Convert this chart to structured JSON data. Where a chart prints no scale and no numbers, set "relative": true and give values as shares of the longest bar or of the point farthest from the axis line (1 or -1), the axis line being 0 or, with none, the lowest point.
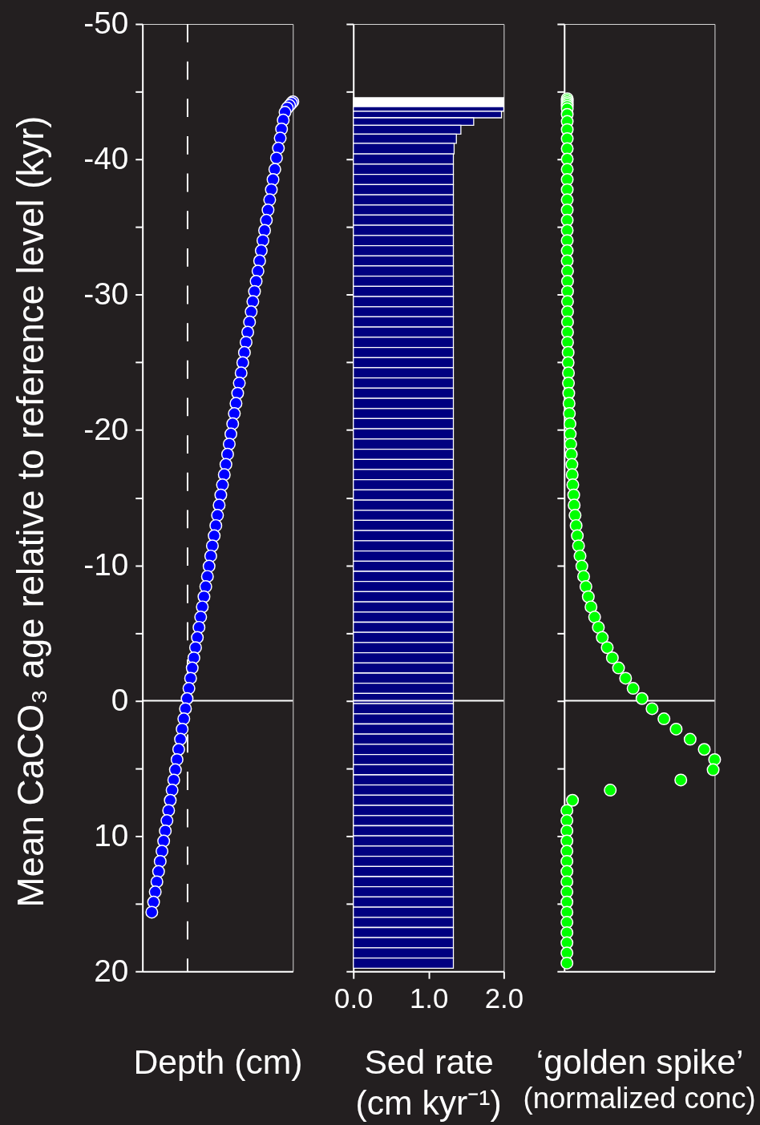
{
  "chart_data": [
    {
      "type": "scatter",
      "orientation": "horizontal",
      "relative": true,
      "marker": "circle",
      "color": "#0000ff",
      "xlabel": "Depth (cm)",
      "ylabel": "Mean CaCO₃ age relative to reference level (kyr)",
      "ylim": [
        20,
        -50
      ],
      "yticks": [
        -50,
        {
          "value": -45,
          "label": null
        },
        -40,
        {
          "value": -35,
          "label": null
        },
        -30,
        {
          "value": -25,
          "label": null
        },
        -20,
        {
          "value": -15,
          "label": null
        },
        -10,
        {
          "value": -5,
          "label": null
        },
        0,
        {
          "value": 5,
          "label": null
        },
        10,
        {
          "value": 15,
          "label": null
        },
        20
      ],
      "tick_labels": "y",
      "ref_lines": [
        {
          "axis": "y",
          "value": 0,
          "color": "#ffffff"
        },
        {
          "axis": "x",
          "value": 0.3,
          "color": "#ffffff",
          "line_style": "dashed"
        }
      ],
      "x": [
        -44.26,
        -44.15,
        -43.98,
        -43.8,
        -43.48,
        -42.9,
        -42.24,
        -41.57,
        -40.83,
        -40.1,
        -39.26,
        -38.51,
        -37.76,
        -37.01,
        -36.26,
        -35.5,
        -34.75,
        -34.0,
        -33.25,
        -32.5,
        -31.74,
        -30.99,
        -30.24,
        -29.49,
        -28.74,
        -27.98,
        -27.23,
        -26.48,
        -25.73,
        -24.98,
        -24.22,
        -23.47,
        -22.72,
        -21.97,
        -21.22,
        -20.46,
        -19.71,
        -18.96,
        -18.21,
        -17.46,
        -16.7,
        -15.95,
        -15.2,
        -14.45,
        -13.7,
        -12.94,
        -12.19,
        -11.44,
        -10.69,
        -9.94,
        -9.18,
        -8.43,
        -7.68,
        -6.93,
        -6.18,
        -5.42,
        -4.67,
        -3.92,
        -3.17,
        -2.42,
        -1.66,
        -0.91,
        -0.16,
        0.59,
        1.34,
        2.1,
        2.85,
        3.6,
        4.35,
        5.1,
        5.86,
        6.61,
        7.36,
        8.11,
        8.86,
        9.62,
        10.37,
        11.12,
        11.87,
        12.62,
        13.38,
        14.13,
        14.88,
        15.63
      ],
      "values": [
        1.0,
        0.991,
        0.978,
        0.963,
        0.948,
        0.936,
        0.925,
        0.916,
        0.904,
        0.891,
        0.88,
        0.868,
        0.857,
        0.846,
        0.835,
        0.824,
        0.812,
        0.801,
        0.79,
        0.779,
        0.768,
        0.756,
        0.745,
        0.734,
        0.723,
        0.712,
        0.7,
        0.689,
        0.678,
        0.667,
        0.656,
        0.644,
        0.633,
        0.622,
        0.611,
        0.6,
        0.588,
        0.577,
        0.566,
        0.555,
        0.544,
        0.532,
        0.521,
        0.51,
        0.499,
        0.488,
        0.477,
        0.465,
        0.454,
        0.443,
        0.432,
        0.421,
        0.409,
        0.398,
        0.387,
        0.376,
        0.365,
        0.353,
        0.342,
        0.331,
        0.32,
        0.309,
        0.297,
        0.286,
        0.275,
        0.264,
        0.253,
        0.241,
        0.23,
        0.219,
        0.208,
        0.197,
        0.185,
        0.174,
        0.163,
        0.152,
        0.141,
        0.13,
        0.118,
        0.107,
        0.096,
        0.085,
        0.074,
        0.062
      ]
    },
    {
      "type": "histogram",
      "orientation": "horizontal",
      "xlabel": "Sed rate\n(cm kyr⁻¹)",
      "xlim": [
        0,
        2
      ],
      "xticks": [
        {
          "value": 0,
          "label": "0.0"
        },
        {
          "value": 1,
          "label": "1.0"
        },
        {
          "value": 2,
          "label": "2.0"
        }
      ],
      "ylim": [
        20,
        -50
      ],
      "yticks": [
        -50,
        {
          "value": -45,
          "label": null
        },
        -40,
        {
          "value": -35,
          "label": null
        },
        -30,
        {
          "value": -25,
          "label": null
        },
        -20,
        {
          "value": -15,
          "label": null
        },
        -10,
        {
          "value": -5,
          "label": null
        },
        0,
        {
          "value": 5,
          "label": null
        },
        10,
        {
          "value": 15,
          "label": null
        },
        20
      ],
      "tick_labels": "x",
      "ref_lines": [
        {
          "axis": "y",
          "value": 0,
          "color": "#ffffff"
        }
      ],
      "bins": [
        -44.55,
        -43.9,
        -43.56,
        -43.07,
        -42.52,
        -41.87,
        -41.18,
        -40.4,
        -39.64,
        -38.89,
        -38.14,
        -37.38,
        -36.63,
        -35.88,
        -35.13,
        -34.38,
        -33.62,
        -32.87,
        -32.12,
        -31.37,
        -30.62,
        -29.86,
        -29.11,
        -28.36,
        -27.61,
        -26.86,
        -26.1,
        -25.35,
        -24.6,
        -23.85,
        -23.1,
        -22.34,
        -21.59,
        -20.84,
        -20.09,
        -19.34,
        -18.58,
        -17.83,
        -17.08,
        -16.33,
        -15.58,
        -14.82,
        -14.07,
        -13.32,
        -12.57,
        -11.82,
        -11.06,
        -10.31,
        -9.56,
        -8.81,
        -8.06,
        -7.3,
        -6.55,
        -5.8,
        -5.05,
        -4.3,
        -3.54,
        -2.79,
        -2.04,
        -1.29,
        -0.54,
        0.22,
        0.97,
        1.72,
        2.47,
        3.22,
        3.98,
        4.73,
        5.48,
        6.23,
        6.98,
        7.74,
        8.49,
        9.24,
        9.99,
        10.74,
        11.5,
        12.25,
        13.0,
        13.75,
        14.5,
        15.26,
        16.01,
        16.76,
        17.51,
        18.26,
        19.02,
        19.77
      ],
      "values": [
        2.0,
        2.0,
        1.97,
        1.6,
        1.43,
        1.37,
        1.34,
        1.33,
        1.33,
        1.33,
        1.33,
        1.33,
        1.33,
        1.33,
        1.33,
        1.33,
        1.33,
        1.33,
        1.33,
        1.33,
        1.33,
        1.33,
        1.33,
        1.33,
        1.33,
        1.33,
        1.33,
        1.33,
        1.33,
        1.33,
        1.33,
        1.33,
        1.33,
        1.33,
        1.33,
        1.33,
        1.33,
        1.33,
        1.33,
        1.33,
        1.33,
        1.33,
        1.33,
        1.33,
        1.33,
        1.33,
        1.33,
        1.33,
        1.33,
        1.33,
        1.33,
        1.33,
        1.33,
        1.33,
        1.33,
        1.33,
        1.33,
        1.33,
        1.33,
        1.33,
        1.33,
        1.33,
        1.33,
        1.33,
        1.33,
        1.33,
        1.33,
        1.33,
        1.33,
        1.33,
        1.33,
        1.33,
        1.33,
        1.33,
        1.33,
        1.33,
        1.33,
        1.33,
        1.33,
        1.33,
        1.33,
        1.33,
        1.33,
        1.33,
        1.33,
        1.33,
        1.33
      ],
      "colors": [
        "#ffffff",
        "#000080",
        "#000080",
        "#000080",
        "#000080",
        "#000080",
        "#000080",
        "#000080",
        "#000080",
        "#000080",
        "#000080",
        "#000080",
        "#000080",
        "#000080",
        "#000080",
        "#000080",
        "#000080",
        "#000080",
        "#000080",
        "#000080",
        "#000080",
        "#000080",
        "#000080",
        "#000080",
        "#000080",
        "#000080",
        "#000080",
        "#000080",
        "#000080",
        "#000080",
        "#000080",
        "#000080",
        "#000080",
        "#000080",
        "#000080",
        "#000080",
        "#000080",
        "#000080",
        "#000080",
        "#000080",
        "#000080",
        "#000080",
        "#000080",
        "#000080",
        "#000080",
        "#000080",
        "#000080",
        "#000080",
        "#000080",
        "#000080",
        "#000080",
        "#000080",
        "#000080",
        "#000080",
        "#000080",
        "#000080",
        "#000080",
        "#000080",
        "#000080",
        "#000080",
        "#000080",
        "#000080",
        "#000080",
        "#000080",
        "#000080",
        "#000080",
        "#000080",
        "#000080",
        "#000080",
        "#000080",
        "#000080",
        "#000080",
        "#000080",
        "#000080",
        "#000080",
        "#000080",
        "#000080",
        "#000080",
        "#000080",
        "#000080",
        "#000080",
        "#000080",
        "#000080",
        "#000080",
        "#000080",
        "#000080",
        "#000080"
      ]
    },
    {
      "type": "scatter",
      "orientation": "horizontal",
      "relative": true,
      "marker": "circle",
      "color": "#00ff00",
      "xlabel": "‘golden spike’\n(normalized conc)",
      "ylim": [
        20,
        -50
      ],
      "yticks": [
        -50,
        {
          "value": -45,
          "label": null
        },
        -40,
        {
          "value": -35,
          "label": null
        },
        -30,
        {
          "value": -25,
          "label": null
        },
        -20,
        {
          "value": -15,
          "label": null
        },
        -10,
        {
          "value": -5,
          "label": null
        },
        0,
        {
          "value": 5,
          "label": null
        },
        10,
        {
          "value": 15,
          "label": null
        },
        20
      ],
      "tick_labels": false,
      "ref_lines": [
        {
          "axis": "y",
          "value": 0,
          "color": "#ffffff"
        }
      ],
      "x": [
        -44.48,
        -44.34,
        -44.2,
        -44.06,
        -43.92,
        -43.73,
        -43.32,
        -42.8,
        -42.2,
        -41.53,
        -40.79,
        -40.02,
        -39.26,
        -38.51,
        -37.76,
        -37.01,
        -36.26,
        -35.5,
        -34.75,
        -34.0,
        -33.25,
        -32.5,
        -31.74,
        -30.99,
        -30.24,
        -29.49,
        -28.74,
        -27.98,
        -27.23,
        -26.48,
        -25.73,
        -24.98,
        -24.22,
        -23.47,
        -22.72,
        -21.97,
        -21.22,
        -20.46,
        -19.71,
        -18.96,
        -18.21,
        -17.46,
        -16.7,
        -15.95,
        -15.2,
        -14.45,
        -13.7,
        -12.94,
        -12.19,
        -11.44,
        -10.69,
        -9.94,
        -9.18,
        -8.43,
        -7.68,
        -6.93,
        -6.18,
        -5.42,
        -4.67,
        -3.92,
        -3.17,
        -2.42,
        -1.66,
        -0.91,
        -0.16,
        0.59,
        1.34,
        2.1,
        2.85,
        3.6,
        4.35,
        5.1,
        5.86,
        6.61,
        7.36,
        8.11,
        8.86,
        9.62,
        10.37,
        11.12,
        11.87,
        12.62,
        13.38,
        14.13,
        14.88,
        15.63,
        16.38,
        17.14,
        17.89,
        18.64,
        19.39
      ],
      "values": [
        0.02,
        0.02,
        0.02,
        0.02,
        0.02,
        0.02,
        0.02,
        0.02,
        0.02,
        0.02,
        0.02,
        0.02,
        0.02,
        0.02,
        0.02,
        0.02,
        0.02,
        0.02,
        0.02,
        0.02,
        0.02,
        0.02,
        0.022,
        0.022,
        0.022,
        0.022,
        0.022,
        0.022,
        0.022,
        0.022,
        0.026,
        0.026,
        0.028,
        0.028,
        0.03,
        0.032,
        0.034,
        0.038,
        0.04,
        0.043,
        0.047,
        0.051,
        0.053,
        0.057,
        0.063,
        0.066,
        0.072,
        0.079,
        0.087,
        0.095,
        0.105,
        0.117,
        0.129,
        0.144,
        0.16,
        0.178,
        0.202,
        0.227,
        0.253,
        0.286,
        0.32,
        0.361,
        0.408,
        0.458,
        0.517,
        0.584,
        0.663,
        0.744,
        0.837,
        0.931,
        1.0,
        0.99,
        0.775,
        0.306,
        0.055,
        0.018,
        0.018,
        0.018,
        0.018,
        0.018,
        0.018,
        0.018,
        0.018,
        0.018,
        0.018,
        0.018,
        0.018,
        0.018,
        0.018,
        0.018,
        0.018
      ]
    }
  ]
}
